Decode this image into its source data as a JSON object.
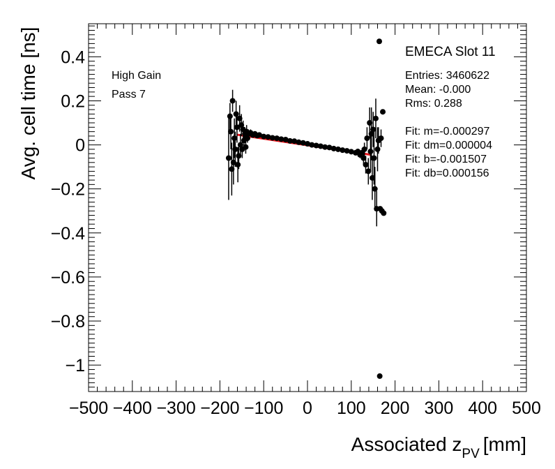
{
  "chart_data": {
    "type": "scatter",
    "title": "",
    "xlabel_main": "Associated z",
    "xlabel_sub": "PV",
    "xlabel_unit": "[mm]",
    "ylabel": "Avg. cell time [ns]",
    "xlim": [
      -500,
      500
    ],
    "ylim": [
      -1.12,
      0.55
    ],
    "x_ticks": [
      -500,
      -400,
      -300,
      -200,
      -100,
      0,
      100,
      200,
      300,
      400,
      500
    ],
    "x_tick_labels": [
      "−500",
      "−400",
      "−300",
      "−200",
      "−100",
      "0",
      "100",
      "200",
      "300",
      "400",
      "500"
    ],
    "y_ticks": [
      -1,
      -0.8,
      -0.6,
      -0.4,
      -0.2,
      0,
      0.2,
      0.4
    ],
    "y_tick_labels": [
      "−1",
      "−0.8",
      "−0.6",
      "−0.4",
      "−0.2",
      "0",
      "0.2",
      "0.4"
    ],
    "grid": false,
    "annotations": [
      "High Gain",
      "Pass 7"
    ],
    "stats_box": {
      "title": "EMECA Slot 11",
      "lines": [
        "Entries: 3460622",
        "Mean: -0.000",
        "Rms: 0.288",
        "",
        "Fit: m=-0.000297",
        "Fit: dm=0.000004",
        "Fit: b=-0.001507",
        "Fit: db=0.000156"
      ]
    },
    "fit_line": {
      "color": "#e8141a",
      "x": [
        -160,
        145
      ],
      "y": [
        0.046,
        -0.045
      ]
    },
    "marker_color": "#000000",
    "series": [
      {
        "points": [
          {
            "x": -180,
            "y": -0.06,
            "err": 0.19
          },
          {
            "x": -177,
            "y": 0.13,
            "err": 0.06
          },
          {
            "x": -175,
            "y": 0.06,
            "err": 0.08
          },
          {
            "x": -173,
            "y": -0.11,
            "err": 0.12
          },
          {
            "x": -171,
            "y": 0.2,
            "err": 0.05
          },
          {
            "x": -169,
            "y": -0.08,
            "err": 0.1
          },
          {
            "x": -167,
            "y": 0.03,
            "err": 0.09
          },
          {
            "x": -165,
            "y": -0.02,
            "err": 0.08
          },
          {
            "x": -163,
            "y": 0.14,
            "err": 0.06
          },
          {
            "x": -161,
            "y": 0.08,
            "err": 0.07
          },
          {
            "x": -159,
            "y": -0.09,
            "err": 0.08
          },
          {
            "x": -157,
            "y": -0.05,
            "err": 0.06
          },
          {
            "x": -155,
            "y": 0.12,
            "err": 0.06
          },
          {
            "x": -153,
            "y": 0.0,
            "err": 0.05
          },
          {
            "x": -151,
            "y": 0.09,
            "err": 0.05
          },
          {
            "x": -149,
            "y": -0.02,
            "err": 0.04
          },
          {
            "x": -147,
            "y": 0.07,
            "err": 0.04
          },
          {
            "x": -145,
            "y": 0.02,
            "err": 0.04
          },
          {
            "x": -143,
            "y": 0.05,
            "err": 0.03
          },
          {
            "x": -141,
            "y": -0.01,
            "err": 0.03
          },
          {
            "x": -139,
            "y": 0.06,
            "err": 0.03
          },
          {
            "x": -137,
            "y": 0.03,
            "err": 0.02
          },
          {
            "x": -135,
            "y": 0.05,
            "err": 0.02
          },
          {
            "x": -130,
            "y": 0.055,
            "err": 0.015
          },
          {
            "x": -125,
            "y": 0.045,
            "err": 0.012
          },
          {
            "x": -120,
            "y": 0.05,
            "err": 0.01
          },
          {
            "x": -115,
            "y": 0.042,
            "err": 0.01
          },
          {
            "x": -110,
            "y": 0.045,
            "err": 0.008
          },
          {
            "x": -100,
            "y": 0.038,
            "err": 0.007
          },
          {
            "x": -90,
            "y": 0.036,
            "err": 0.006
          },
          {
            "x": -80,
            "y": 0.032,
            "err": 0.006
          },
          {
            "x": -70,
            "y": 0.03,
            "err": 0.005
          },
          {
            "x": -60,
            "y": 0.026,
            "err": 0.005
          },
          {
            "x": -50,
            "y": 0.024,
            "err": 0.005
          },
          {
            "x": -40,
            "y": 0.018,
            "err": 0.005
          },
          {
            "x": -30,
            "y": 0.017,
            "err": 0.005
          },
          {
            "x": -20,
            "y": 0.012,
            "err": 0.005
          },
          {
            "x": -10,
            "y": 0.009,
            "err": 0.005
          },
          {
            "x": 0,
            "y": 0.005,
            "err": 0.005
          },
          {
            "x": 10,
            "y": 0.0,
            "err": 0.005
          },
          {
            "x": 20,
            "y": -0.003,
            "err": 0.005
          },
          {
            "x": 30,
            "y": -0.006,
            "err": 0.005
          },
          {
            "x": 40,
            "y": -0.01,
            "err": 0.005
          },
          {
            "x": 50,
            "y": -0.012,
            "err": 0.005
          },
          {
            "x": 60,
            "y": -0.017,
            "err": 0.006
          },
          {
            "x": 70,
            "y": -0.02,
            "err": 0.006
          },
          {
            "x": 80,
            "y": -0.024,
            "err": 0.007
          },
          {
            "x": 90,
            "y": -0.027,
            "err": 0.008
          },
          {
            "x": 100,
            "y": -0.031,
            "err": 0.009
          },
          {
            "x": 110,
            "y": -0.036,
            "err": 0.01
          },
          {
            "x": 115,
            "y": -0.03,
            "err": 0.012
          },
          {
            "x": 120,
            "y": -0.045,
            "err": 0.015
          },
          {
            "x": 125,
            "y": -0.035,
            "err": 0.02
          },
          {
            "x": 128,
            "y": -0.06,
            "err": 0.03
          },
          {
            "x": 130,
            "y": -0.02,
            "err": 0.03
          },
          {
            "x": 133,
            "y": -0.09,
            "err": 0.04
          },
          {
            "x": 136,
            "y": 0.03,
            "err": 0.05
          },
          {
            "x": 139,
            "y": -0.12,
            "err": 0.06
          },
          {
            "x": 142,
            "y": 0.1,
            "err": 0.07
          },
          {
            "x": 144,
            "y": -0.03,
            "err": 0.09
          },
          {
            "x": 146,
            "y": 0.05,
            "err": 0.12
          },
          {
            "x": 148,
            "y": -0.15,
            "err": 0.1
          },
          {
            "x": 150,
            "y": 0.07,
            "err": 0.08
          },
          {
            "x": 152,
            "y": -0.06,
            "err": 0.12
          },
          {
            "x": 154,
            "y": -0.2,
            "err": 0.1
          },
          {
            "x": 156,
            "y": 0.12,
            "err": 0.09
          },
          {
            "x": 158,
            "y": -0.29,
            "err": 0.08
          },
          {
            "x": 160,
            "y": -0.02,
            "err": 0.1
          },
          {
            "x": 162,
            "y": 0.02,
            "err": 0.06
          },
          {
            "x": 164,
            "y": 0.47,
            "err": 0.0
          },
          {
            "x": 165,
            "y": -1.05,
            "err": 0.0
          },
          {
            "x": 166,
            "y": -0.29,
            "err": 0.0
          },
          {
            "x": 168,
            "y": 0.03,
            "err": 0.04
          },
          {
            "x": 170,
            "y": -0.3,
            "err": 0.0
          },
          {
            "x": 172,
            "y": 0.15,
            "err": 0.0
          },
          {
            "x": 174,
            "y": -0.31,
            "err": 0.0
          }
        ]
      }
    ]
  }
}
